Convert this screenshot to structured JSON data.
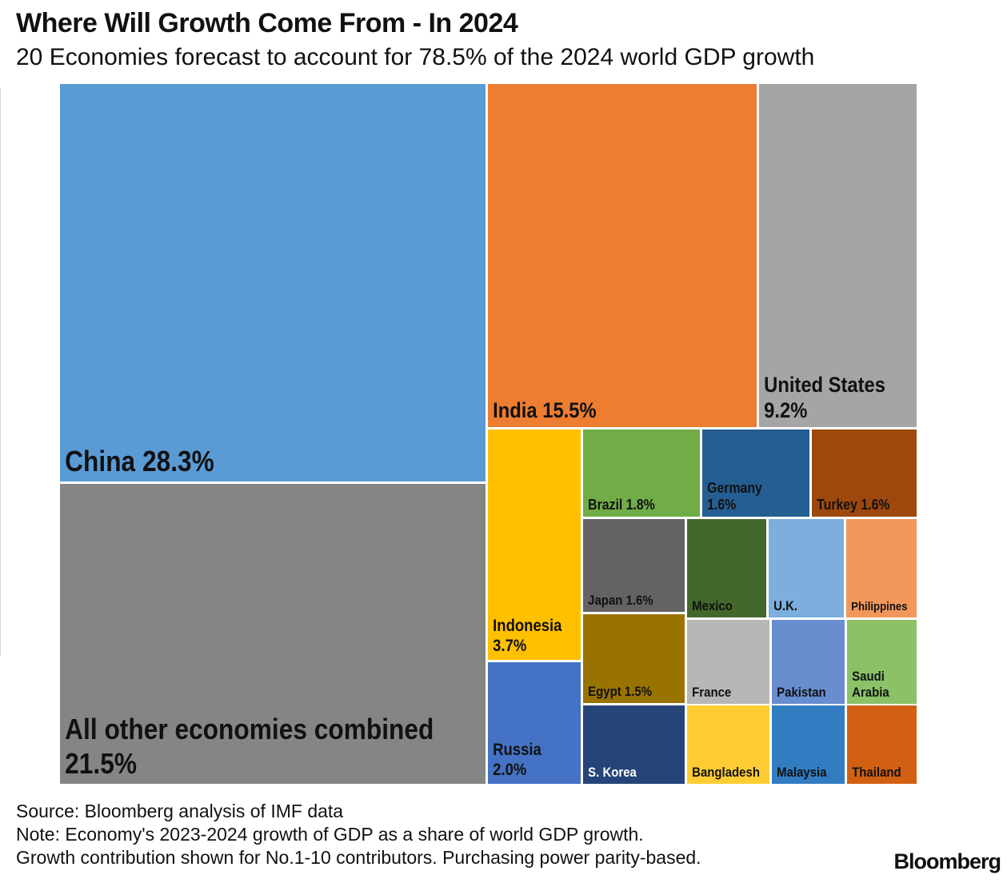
{
  "title": "Where Will Growth Come From - In 2024",
  "subtitle": "20 Economies forecast to account for 78.5% of the 2024 world GDP growth",
  "footer": {
    "source": "Source: Bloomberg analysis of IMF data",
    "note_1": "Note: Economy's 2023-2024 growth of GDP as a share of world GDP growth.",
    "note_2": "Growth contribution shown for No.1-10 contributors. Purchasing power parity-based."
  },
  "brand": "Bloomberg",
  "chart_data": {
    "type": "treemap",
    "value_unit": "% of world GDP growth",
    "items": [
      {
        "key": "china",
        "label": "China",
        "value": 28.3,
        "value_label": "28.3%",
        "color": "#5b9bd5",
        "text_color": "#111111"
      },
      {
        "key": "other",
        "label": "All other economies combined",
        "value": 21.5,
        "value_label": "21.5%",
        "color": "#858585",
        "text_color": "#111111"
      },
      {
        "key": "india",
        "label": "India",
        "value": 15.5,
        "value_label": "15.5%",
        "color": "#ed7d31",
        "text_color": "#111111"
      },
      {
        "key": "us",
        "label": "United States",
        "value": 9.2,
        "value_label": "9.2%",
        "color": "#a5a5a5",
        "text_color": "#111111"
      },
      {
        "key": "indonesia",
        "label": "Indonesia",
        "value": 3.7,
        "value_label": "3.7%",
        "color": "#ffc000",
        "text_color": "#111111"
      },
      {
        "key": "russia",
        "label": "Russia",
        "value": 2.0,
        "value_label": "2.0%",
        "color": "#4472c4",
        "text_color": "#111111"
      },
      {
        "key": "brazil",
        "label": "Brazil",
        "value": 1.8,
        "value_label": "1.8%",
        "color": "#70ad47",
        "text_color": "#111111"
      },
      {
        "key": "germany",
        "label": "Germany",
        "value": 1.6,
        "value_label": "1.6%",
        "color": "#255e91",
        "text_color": "#111111"
      },
      {
        "key": "turkey",
        "label": "Turkey",
        "value": 1.6,
        "value_label": "1.6%",
        "color": "#9e480e",
        "text_color": "#111111"
      },
      {
        "key": "japan",
        "label": "Japan",
        "value": 1.6,
        "value_label": "1.6%",
        "color": "#636363",
        "text_color": "#111111"
      },
      {
        "key": "egypt",
        "label": "Egypt",
        "value": 1.5,
        "value_label": "1.5%",
        "color": "#997300",
        "text_color": "#111111"
      },
      {
        "key": "mexico",
        "label": "Mexico",
        "value": null,
        "value_label": "",
        "color": "#43682b",
        "text_color": "#111111"
      },
      {
        "key": "uk",
        "label": "U.K.",
        "value": null,
        "value_label": "",
        "color": "#7cafdd",
        "text_color": "#111111"
      },
      {
        "key": "philippines",
        "label": "Philippines",
        "value": null,
        "value_label": "",
        "color": "#f1975a",
        "text_color": "#111111"
      },
      {
        "key": "france",
        "label": "France",
        "value": null,
        "value_label": "",
        "color": "#b7b7b7",
        "text_color": "#111111"
      },
      {
        "key": "pakistan",
        "label": "Pakistan",
        "value": null,
        "value_label": "",
        "color": "#698ed0",
        "text_color": "#111111"
      },
      {
        "key": "saudi",
        "label": "Saudi Arabia",
        "value": null,
        "value_label": "",
        "color": "#8cc168",
        "text_color": "#111111"
      },
      {
        "key": "skorea",
        "label": "S. Korea",
        "value": null,
        "value_label": "",
        "color": "#264478",
        "text_color": "#ffffff"
      },
      {
        "key": "bangladesh",
        "label": "Bangladesh",
        "value": null,
        "value_label": "",
        "color": "#ffcd33",
        "text_color": "#111111"
      },
      {
        "key": "malaysia",
        "label": "Malaysia",
        "value": null,
        "value_label": "",
        "color": "#327dc2",
        "text_color": "#111111"
      },
      {
        "key": "thailand",
        "label": "Thailand",
        "value": null,
        "value_label": "",
        "color": "#d26012",
        "text_color": "#111111"
      }
    ]
  }
}
